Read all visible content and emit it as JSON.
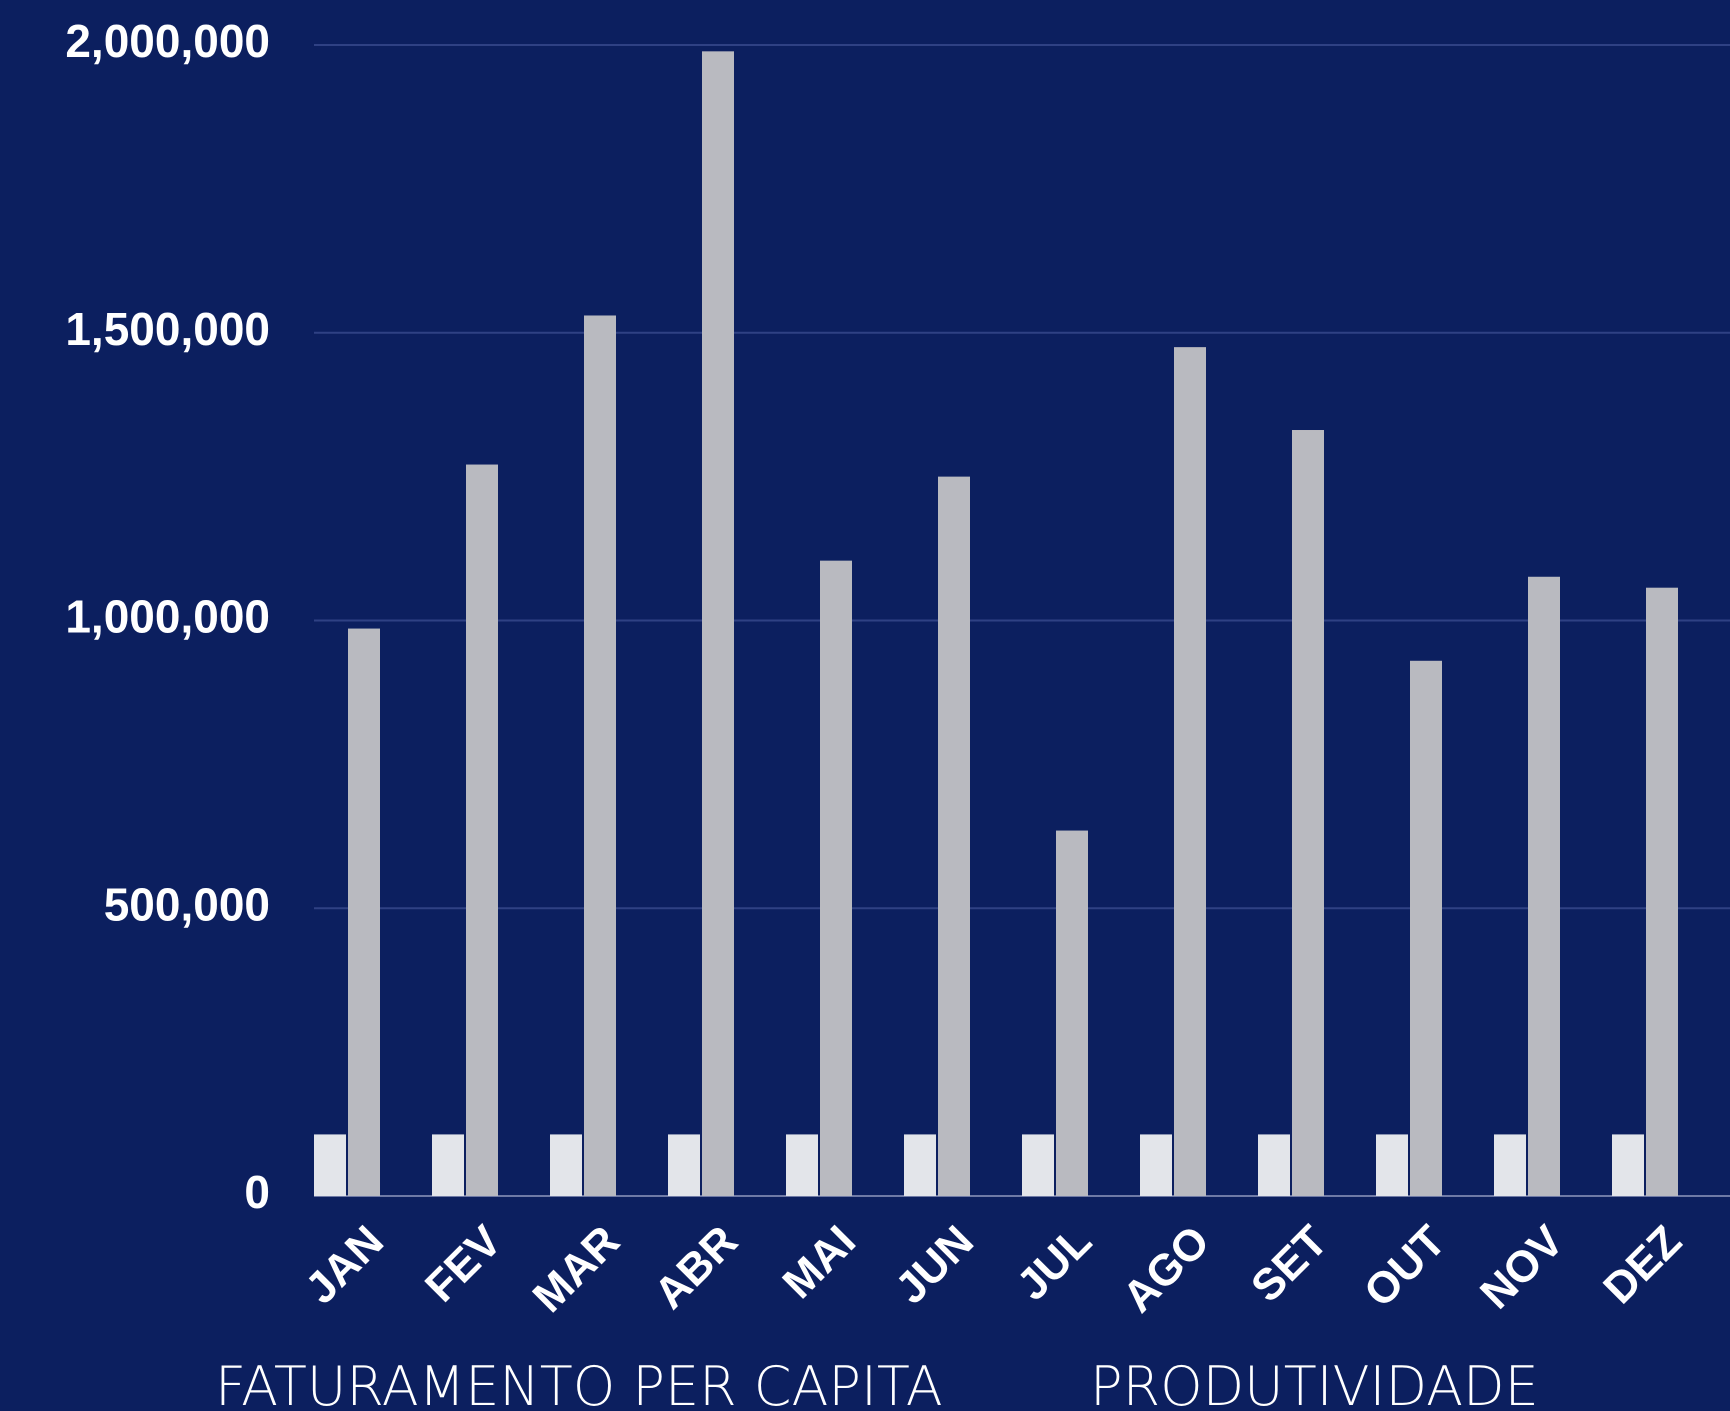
{
  "chart_data": {
    "type": "bar",
    "categories": [
      "JAN",
      "FEV",
      "MAR",
      "ABR",
      "MAI",
      "JUN",
      "JUL",
      "AGO",
      "SET",
      "OUT",
      "NOV",
      "DEZ"
    ],
    "series": [
      {
        "name": "FATURAMENTO PER CAPITA",
        "color": "#e3e5ea",
        "values": [
          107000,
          107000,
          107000,
          107000,
          107000,
          107000,
          107000,
          107000,
          107000,
          107000,
          107000,
          107000
        ]
      },
      {
        "name": "PRODUTIVIDADE",
        "color": "#b9bac0",
        "values": [
          986000,
          1271000,
          1530000,
          1989000,
          1104000,
          1250000,
          635000,
          1475000,
          1331000,
          930000,
          1076000,
          1057000
        ]
      }
    ],
    "ylim": [
      0,
      2000000
    ],
    "yticks": [
      0,
      {
        "value": 500000,
        "label": "500,000"
      },
      {
        "value": 1000000,
        "label": "1,000,000"
      },
      {
        "value": 1500000,
        "label": "1,500,000"
      },
      {
        "value": 2000000,
        "label": "2,000,000"
      }
    ],
    "grid": true
  }
}
